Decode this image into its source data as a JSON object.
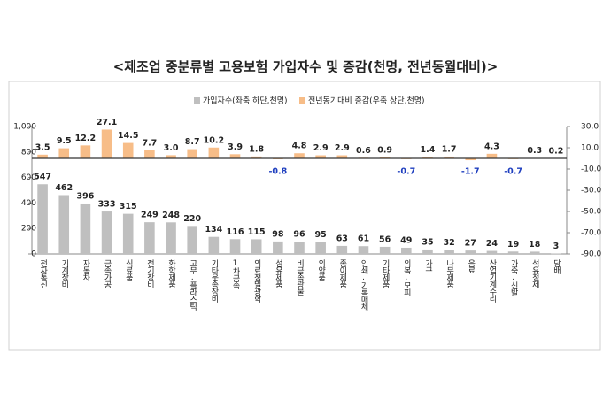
{
  "chart_data": {
    "type": "bar",
    "title": "<제조업 중분류별 고용보험 가입자수 및 증감(천명, 전년동월대비)>",
    "categories": [
      "전자통신",
      "기계장비",
      "자동차",
      "금속가공",
      "식료품",
      "전기장비",
      "화학제품",
      "고무,플라스틱",
      "기타운송장비",
      "1차금속",
      "의료정밀광학",
      "섬유제품",
      "비금속광물",
      "의약품",
      "종이제품",
      "인쇄,기록매체",
      "기타제품",
      "의복,모피",
      "가구",
      "나무제품",
      "음료",
      "산업기계수리",
      "가죽,신발",
      "석유정제",
      "담배"
    ],
    "series": [
      {
        "name": "가입자수(좌축 하단,천명)",
        "color": "#bfbfbf",
        "axis": "y",
        "values": [
          547,
          462,
          396,
          333,
          315,
          249,
          248,
          220,
          134,
          116,
          115,
          98,
          96,
          95,
          63,
          61,
          56,
          49,
          35,
          32,
          27,
          24,
          19,
          18,
          3
        ]
      },
      {
        "name": "전년동기대비 증감(우축 상단,천명)",
        "color": "#f7bd88",
        "axis": "y2",
        "values": [
          3.5,
          9.5,
          12.2,
          27.1,
          14.5,
          7.7,
          3.0,
          8.7,
          10.2,
          3.9,
          1.8,
          -0.8,
          4.8,
          2.9,
          2.9,
          0.6,
          0.9,
          -0.7,
          1.4,
          1.7,
          -1.7,
          4.3,
          -0.7,
          0.3,
          0.2
        ],
        "value_labels": [
          "3.5",
          "9.5",
          "12.2",
          "27.1",
          "14.5",
          "7.7",
          "3.0",
          "8.7",
          "10.2",
          "3.9",
          "1.8",
          "-0.8",
          "4.8",
          "2.9",
          "2.9",
          "0.6",
          "0.9",
          "-0.7",
          "1.4",
          "1.7",
          "-1.7",
          "4.3",
          "-0.7",
          "0.3",
          "0.2"
        ]
      }
    ],
    "ylim": [
      0,
      1000
    ],
    "yticks": [
      0,
      200,
      400,
      600,
      800,
      {
        "value": 1000,
        "label": "1,000"
      }
    ],
    "y2lim": [
      -90,
      30
    ],
    "y2ticks": [
      {
        "value": 30,
        "label": "30.0"
      },
      {
        "value": 10,
        "label": "10.0"
      },
      {
        "value": -10,
        "label": "-10.0"
      },
      {
        "value": -30,
        "label": "-30.0"
      },
      {
        "value": -50,
        "label": "-50.0"
      },
      {
        "value": -70,
        "label": "-70.0"
      },
      {
        "value": -90,
        "label": "-90.0"
      }
    ],
    "negative_label_color": "#1f3fbf"
  }
}
